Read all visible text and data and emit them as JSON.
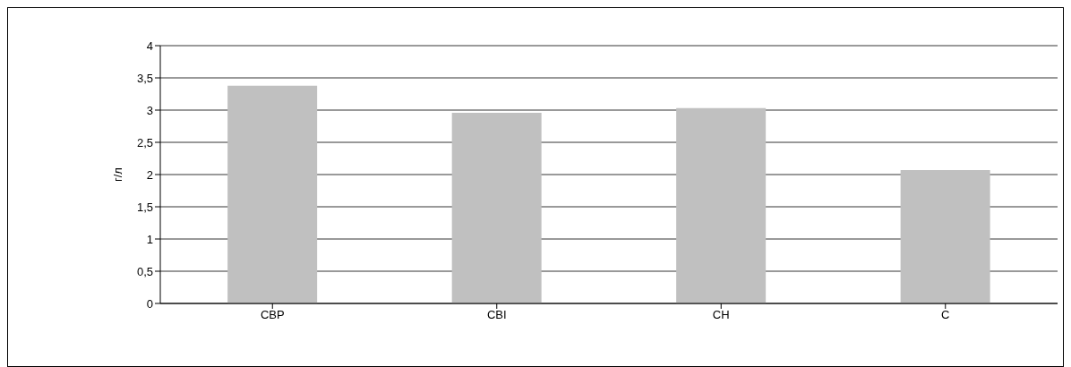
{
  "chart_data": {
    "type": "bar",
    "ylabel": "г/л",
    "categories": [
      "CBP",
      "CBI",
      "CH",
      "C"
    ],
    "values": [
      3.38,
      2.96,
      3.03,
      2.07
    ],
    "color": "#c0c0c0",
    "ylim": [
      0,
      4
    ],
    "yticks": [
      0,
      {
        "value": 0.5,
        "label": "0,5"
      },
      1,
      {
        "value": 1.5,
        "label": "1,5"
      },
      2,
      {
        "value": 2.5,
        "label": "2,5"
      },
      3,
      {
        "value": 3.5,
        "label": "3,5"
      },
      4
    ],
    "grid": "y",
    "legend": false
  }
}
